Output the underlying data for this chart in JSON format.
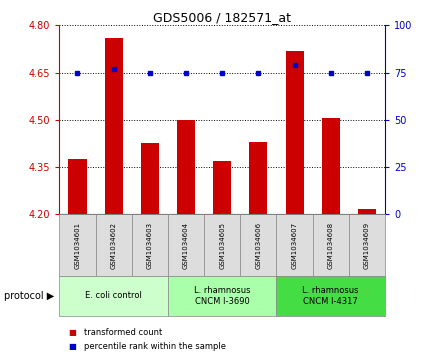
{
  "title": "GDS5006 / 182571_at",
  "samples": [
    "GSM1034601",
    "GSM1034602",
    "GSM1034603",
    "GSM1034604",
    "GSM1034605",
    "GSM1034606",
    "GSM1034607",
    "GSM1034608",
    "GSM1034609"
  ],
  "transformed_count": [
    4.375,
    4.76,
    4.425,
    4.5,
    4.37,
    4.43,
    4.72,
    4.505,
    4.215
  ],
  "percentile_rank": [
    75,
    77,
    75,
    75,
    75,
    75,
    79,
    75,
    75
  ],
  "ylim_left": [
    4.2,
    4.8
  ],
  "ylim_right": [
    0,
    100
  ],
  "yticks_left": [
    4.2,
    4.35,
    4.5,
    4.65,
    4.8
  ],
  "yticks_right": [
    0,
    25,
    50,
    75,
    100
  ],
  "bar_color": "#cc0000",
  "dot_color": "#0000cc",
  "bar_width": 0.5,
  "bar_bottom": 4.2,
  "protocols": [
    {
      "label": "E. coli control",
      "indices": [
        0,
        1,
        2
      ],
      "color": "#ccffcc"
    },
    {
      "label": "L. rhamnosus\nCNCM I-3690",
      "indices": [
        3,
        4,
        5
      ],
      "color": "#aaffaa"
    },
    {
      "label": "L. rhamnosus\nCNCM I-4317",
      "indices": [
        6,
        7,
        8
      ],
      "color": "#44dd44"
    }
  ],
  "legend_items": [
    {
      "label": "transformed count",
      "color": "#cc0000"
    },
    {
      "label": "percentile rank within the sample",
      "color": "#0000cc"
    }
  ],
  "tick_color_left": "#cc0000",
  "tick_color_right": "#0000cc",
  "protocol_label": "protocol",
  "sample_box_color": "#dddddd",
  "sample_box_edge": "#888888",
  "grid_color": "black",
  "grid_ls": ":"
}
